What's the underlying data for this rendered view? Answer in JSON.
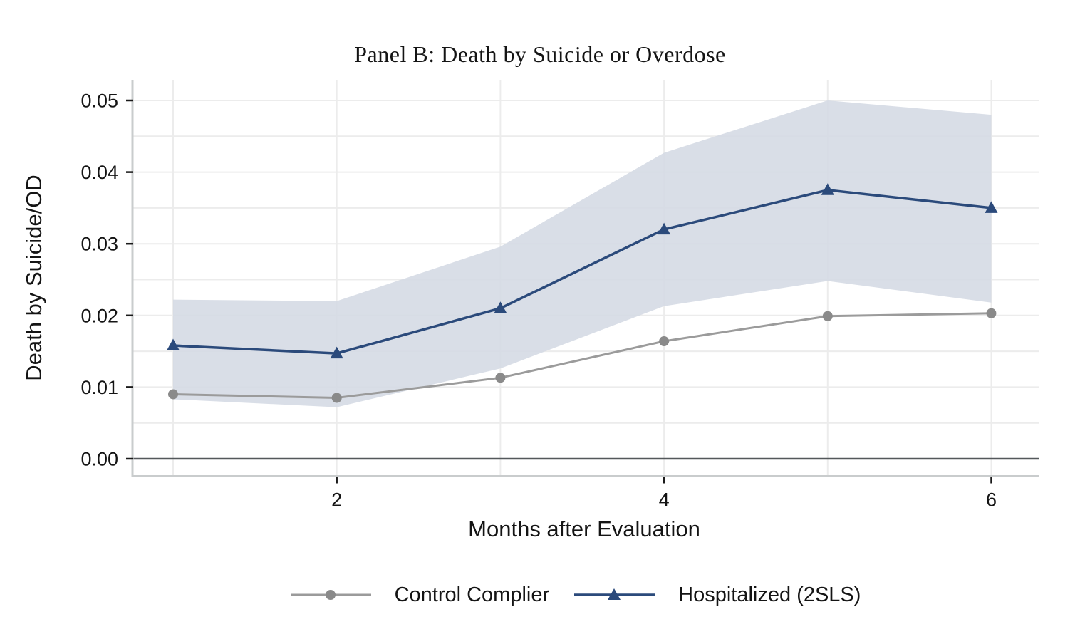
{
  "figure": {
    "title": "Panel B: Death by Suicide or Overdose",
    "colors": {
      "control_line": "#9b9b9b",
      "control_marker": "#8a8a8a",
      "hospitalized": "#2b4a7b",
      "band_fill": "#d5dae4",
      "gridline": "#ececec",
      "axis_border": "#c9cccd",
      "zero_line": "#54585b",
      "tick": "#1a1a1a",
      "text": "#141414"
    },
    "legend": {
      "items": [
        {
          "label": "Control Complier",
          "marker": "circle-icon"
        },
        {
          "label": "Hospitalized (2SLS)",
          "marker": "triangle-icon"
        }
      ]
    }
  },
  "chart_data": {
    "type": "line",
    "title": "Panel B: Death by Suicide or Overdose",
    "xlabel": "Months after Evaluation",
    "ylabel": "Death by Suicide/OD",
    "x": [
      1,
      2,
      3,
      4,
      5,
      6
    ],
    "x_tick_values": [
      2,
      4,
      6
    ],
    "x_tick_labels": [
      "2",
      "4",
      "6"
    ],
    "y_tick_values": [
      0,
      0.01,
      0.02,
      0.03,
      0.04,
      0.05
    ],
    "y_tick_labels": [
      "0.00",
      "0.01",
      "0.02",
      "0.03",
      "0.04",
      "0.05"
    ],
    "y_minor_grid_step": 0.005,
    "ylim": [
      -0.0025,
      0.0527
    ],
    "xlim": [
      0.75,
      6.29
    ],
    "grid": true,
    "legend_position": "bottom",
    "zero_reference_line": 0,
    "series": [
      {
        "name": "Control Complier",
        "marker": "circle",
        "values": [
          0.009,
          0.0085,
          0.0113,
          0.0164,
          0.0199,
          0.0203
        ]
      },
      {
        "name": "Hospitalized (2SLS)",
        "marker": "triangle",
        "values": [
          0.0158,
          0.0147,
          0.021,
          0.032,
          0.0375,
          0.035
        ],
        "ci_upper": [
          0.0222,
          0.022,
          0.0296,
          0.0427,
          0.05,
          0.048
        ],
        "ci_lower": [
          0.0083,
          0.0072,
          0.0126,
          0.0213,
          0.0248,
          0.0218
        ]
      }
    ]
  }
}
